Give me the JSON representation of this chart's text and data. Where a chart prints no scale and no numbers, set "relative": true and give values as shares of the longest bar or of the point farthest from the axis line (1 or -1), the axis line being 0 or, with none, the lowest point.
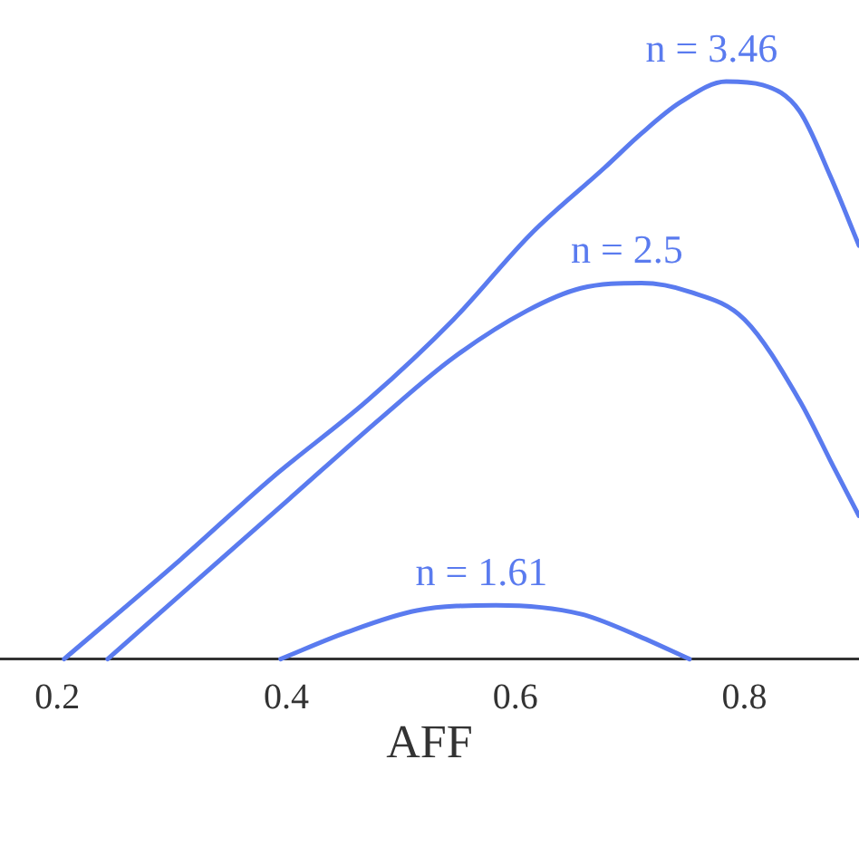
{
  "chart_data": {
    "type": "line",
    "xlabel": "AFF",
    "relative": true,
    "xlim": [
      0.15,
      0.9
    ],
    "xticks": [
      0.2,
      0.4,
      0.6,
      0.8
    ],
    "grid": false,
    "legend": false,
    "marker": "none",
    "line_style": "solid",
    "tick_labels": "x",
    "series": [
      {
        "name": "n = 3.46",
        "color": "#5a7bef",
        "x": [
          0.206,
          0.308,
          0.387,
          0.471,
          0.546,
          0.614,
          0.678,
          0.71,
          0.744,
          0.784,
          0.816,
          0.848,
          0.875,
          0.9
        ],
        "values": [
          0,
          0.173,
          0.313,
          0.448,
          0.588,
          0.737,
          0.851,
          0.91,
          0.964,
          1,
          0.994,
          0.949,
          0.836,
          0.716
        ]
      },
      {
        "name": "n = 2.5",
        "color": "#5a7bef",
        "x": [
          0.244,
          0.324,
          0.403,
          0.483,
          0.546,
          0.61,
          0.657,
          0.71,
          0.752,
          0.8,
          0.848,
          0.879,
          0.9
        ],
        "values": [
          0,
          0.14,
          0.278,
          0.418,
          0.522,
          0.603,
          0.642,
          0.651,
          0.636,
          0.588,
          0.448,
          0.328,
          0.248
        ]
      },
      {
        "name": "n = 1.61",
        "color": "#5a7bef",
        "x": [
          0.395,
          0.451,
          0.514,
          0.583,
          0.657,
          0.705,
          0.752
        ],
        "values": [
          0,
          0.045,
          0.084,
          0.093,
          0.078,
          0.042,
          0
        ]
      }
    ]
  }
}
